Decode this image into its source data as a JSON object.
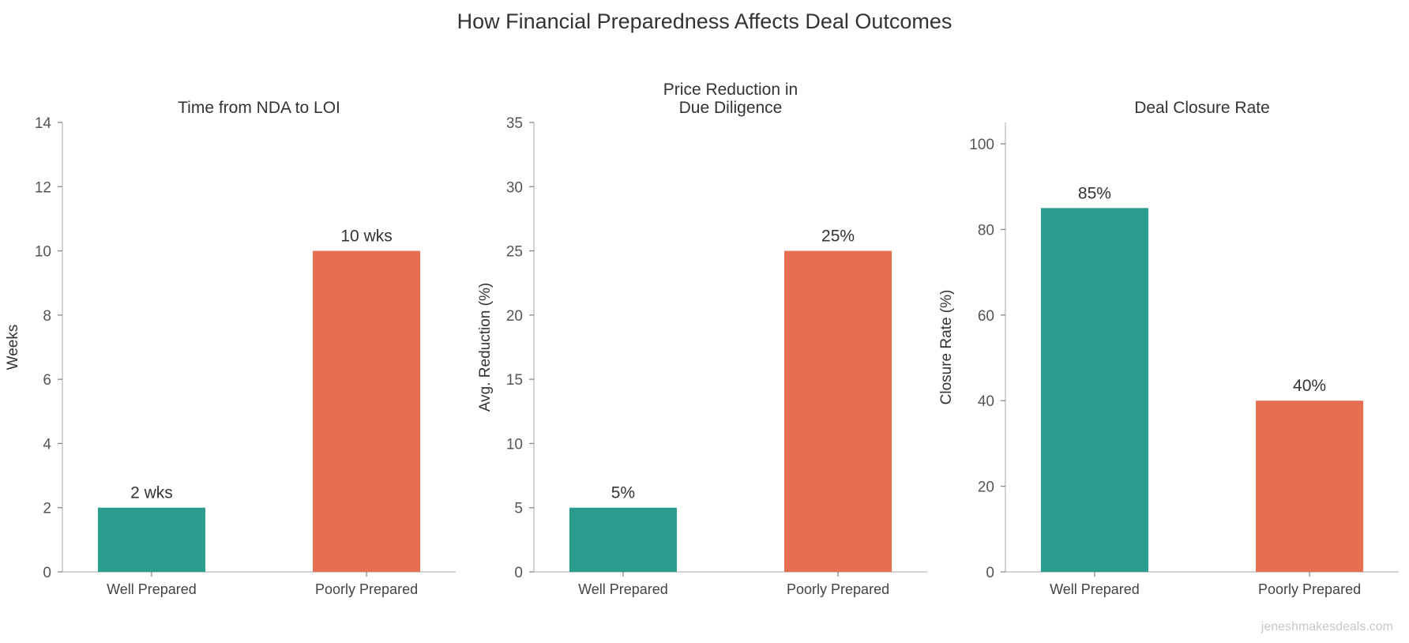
{
  "suptitle": "How Financial Preparedness Affects Deal Outcomes",
  "watermark": "jeneshmakesdeals.com",
  "colors": {
    "well_prepared": "#2a9d8f",
    "poorly_prepared": "#e76f51",
    "text": "#333333",
    "axis": "#bbbbbb"
  },
  "chart_data": [
    {
      "type": "bar",
      "title": [
        "Time from NDA to LOI"
      ],
      "xlabel": "",
      "ylabel": "Weeks",
      "categories": [
        "Well Prepared",
        "Poorly Prepared"
      ],
      "values": [
        2,
        10
      ],
      "data_labels": [
        "2 wks",
        "10 wks"
      ],
      "ylim": [
        0,
        14
      ],
      "yticks": [
        0,
        2,
        4,
        6,
        8,
        10,
        12,
        14
      ],
      "grid": false
    },
    {
      "type": "bar",
      "title": [
        "Price Reduction in",
        "Due Diligence"
      ],
      "xlabel": "",
      "ylabel": "Avg. Reduction (%)",
      "categories": [
        "Well Prepared",
        "Poorly Prepared"
      ],
      "values": [
        5,
        25
      ],
      "data_labels": [
        "5%",
        "25%"
      ],
      "ylim": [
        0,
        35
      ],
      "yticks": [
        0,
        5,
        10,
        15,
        20,
        25,
        30,
        35
      ],
      "grid": false
    },
    {
      "type": "bar",
      "title": [
        "Deal Closure Rate"
      ],
      "xlabel": "",
      "ylabel": "Closure Rate (%)",
      "categories": [
        "Well Prepared",
        "Poorly Prepared"
      ],
      "values": [
        85,
        40
      ],
      "data_labels": [
        "85%",
        "40%"
      ],
      "ylim": [
        0,
        105
      ],
      "yticks": [
        0,
        20,
        40,
        60,
        80,
        100
      ],
      "grid": false
    }
  ]
}
